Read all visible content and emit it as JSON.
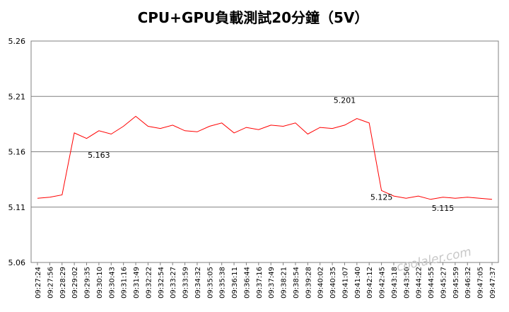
{
  "chart_data": {
    "type": "line",
    "title": "CPU+GPU負載測試20分鐘（5V）",
    "xlabel": "",
    "ylabel": "",
    "ylim": [
      5.06,
      5.26
    ],
    "yticks": [
      "5.26",
      "5.21",
      "5.16",
      "5.11",
      "5.06"
    ],
    "grid": true,
    "legend": "none",
    "line_color": "#ff0000",
    "x": [
      "09:27:24",
      "09:27:56",
      "09:28:29",
      "09:29:02",
      "09:29:35",
      "09:30:10",
      "09:30:43",
      "09:31:16",
      "09:31:49",
      "09:32:22",
      "09:32:54",
      "09:33:27",
      "09:33:59",
      "09:34:32",
      "09:35:05",
      "09:35:38",
      "09:36:11",
      "09:36:44",
      "09:37:16",
      "09:37:49",
      "09:38:21",
      "09:38:54",
      "09:39:28",
      "09:40:02",
      "09:40:35",
      "09:41:07",
      "09:41:40",
      "09:42:12",
      "09:42:45",
      "09:43:18",
      "09:43:50",
      "09:44:22",
      "09:44:55",
      "09:45:27",
      "09:45:59",
      "09:46:32",
      "09:47:05",
      "09:47:37"
    ],
    "values": [
      5.118,
      5.119,
      5.121,
      5.177,
      5.172,
      5.179,
      5.176,
      5.183,
      5.192,
      5.183,
      5.181,
      5.184,
      5.179,
      5.178,
      5.183,
      5.186,
      5.177,
      5.182,
      5.18,
      5.184,
      5.183,
      5.186,
      5.176,
      5.182,
      5.181,
      5.184,
      5.19,
      5.186,
      5.125,
      5.12,
      5.118,
      5.12,
      5.117,
      5.119,
      5.118,
      5.119,
      5.118,
      5.117
    ],
    "annotations": [
      {
        "label": "5.163",
        "index": 5
      },
      {
        "label": "5.201",
        "index": 25
      },
      {
        "label": "5.125",
        "index": 28
      },
      {
        "label": "5.115",
        "index": 33
      }
    ]
  },
  "watermark": "coolaler.com"
}
